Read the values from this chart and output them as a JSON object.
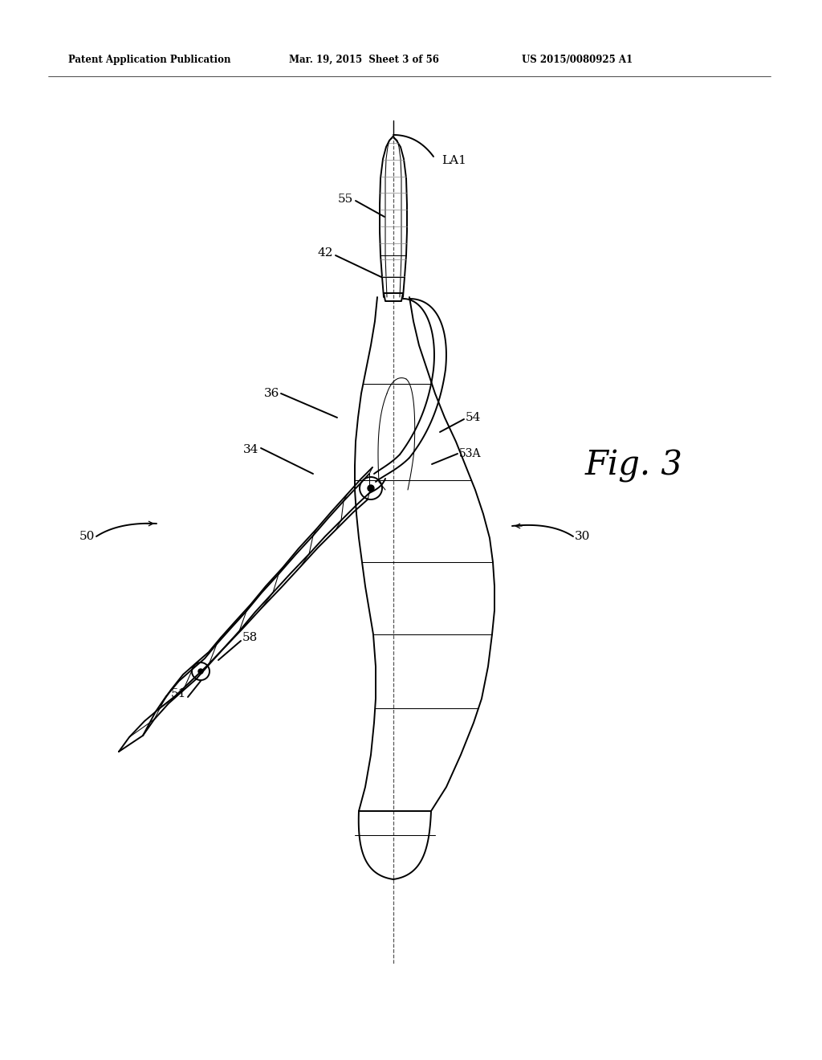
{
  "background_color": "#ffffff",
  "header_left": "Patent Application Publication",
  "header_center": "Mar. 19, 2015  Sheet 3 of 56",
  "header_right": "US 2015/0080925 A1",
  "fig_label": "Fig. 3",
  "line_color": "#000000",
  "lw": 1.4,
  "thin_lw": 0.75,
  "header_fontsize": 8.5,
  "label_fontsize": 11
}
